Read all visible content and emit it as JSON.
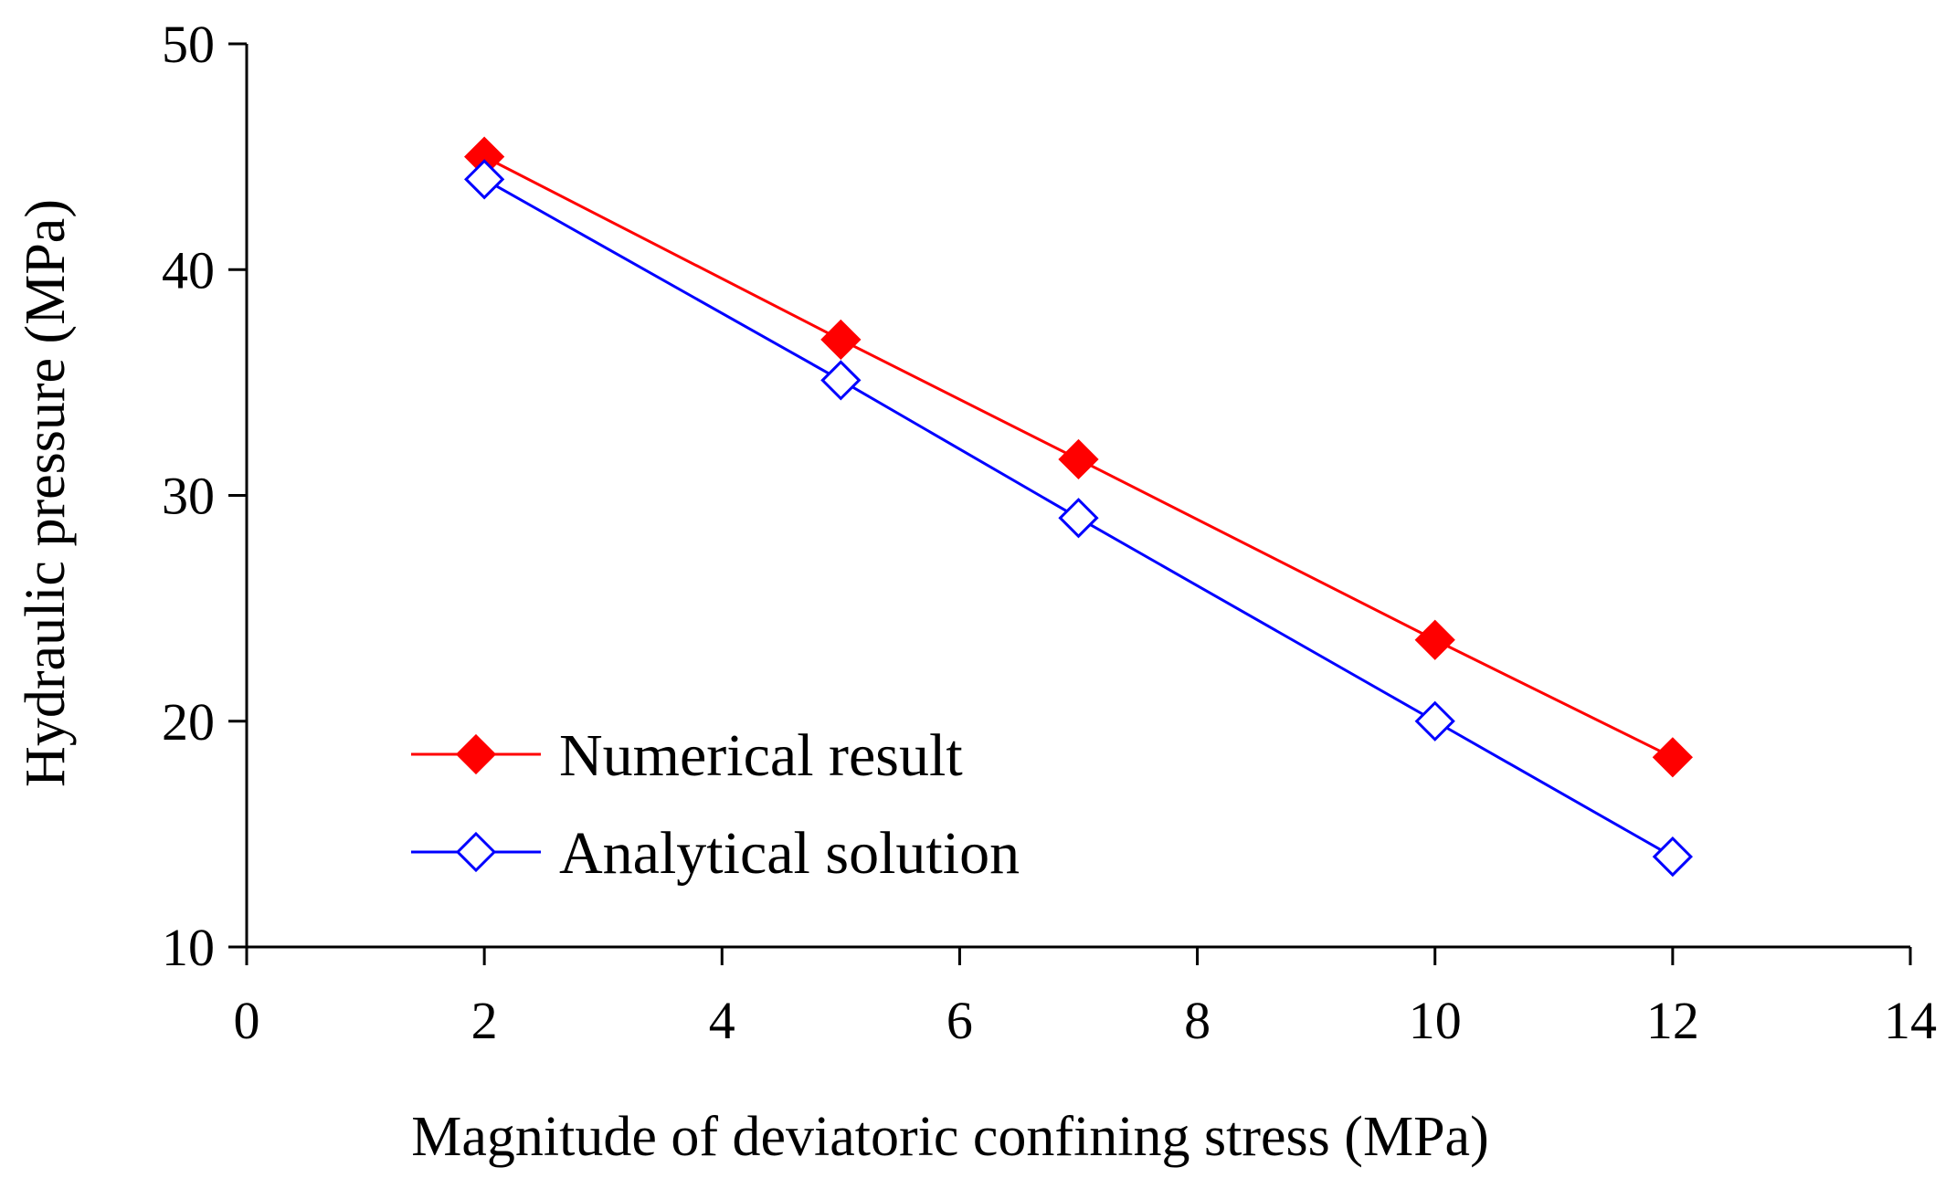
{
  "chart_data": {
    "type": "line",
    "title": "",
    "xlabel": "Magnitude of deviatoric confining stress (MPa)",
    "ylabel": "Hydraulic pressure (MPa)",
    "xlim": [
      0,
      14
    ],
    "ylim": [
      10,
      50
    ],
    "xticks": [
      0,
      2,
      4,
      6,
      8,
      10,
      12,
      14
    ],
    "yticks": [
      10,
      20,
      30,
      40,
      50
    ],
    "xtick_labels": [
      "0",
      "2",
      "4",
      "6",
      "8",
      "10",
      "12",
      "14"
    ],
    "ytick_labels": [
      "10",
      "20",
      "30",
      "40",
      "50"
    ],
    "grid": false,
    "legend_position": "lower-left",
    "series": [
      {
        "name": "Numerical result",
        "color": "#ff0000",
        "marker": "filled-diamond",
        "x": [
          2,
          5,
          7,
          10,
          12
        ],
        "y": [
          45.0,
          36.9,
          31.6,
          23.6,
          18.4
        ]
      },
      {
        "name": "Analytical solution",
        "color": "#0000ff",
        "marker": "open-diamond",
        "x": [
          2,
          5,
          7,
          10,
          12
        ],
        "y": [
          44.0,
          35.1,
          29.0,
          20.0,
          14.0
        ]
      }
    ]
  }
}
